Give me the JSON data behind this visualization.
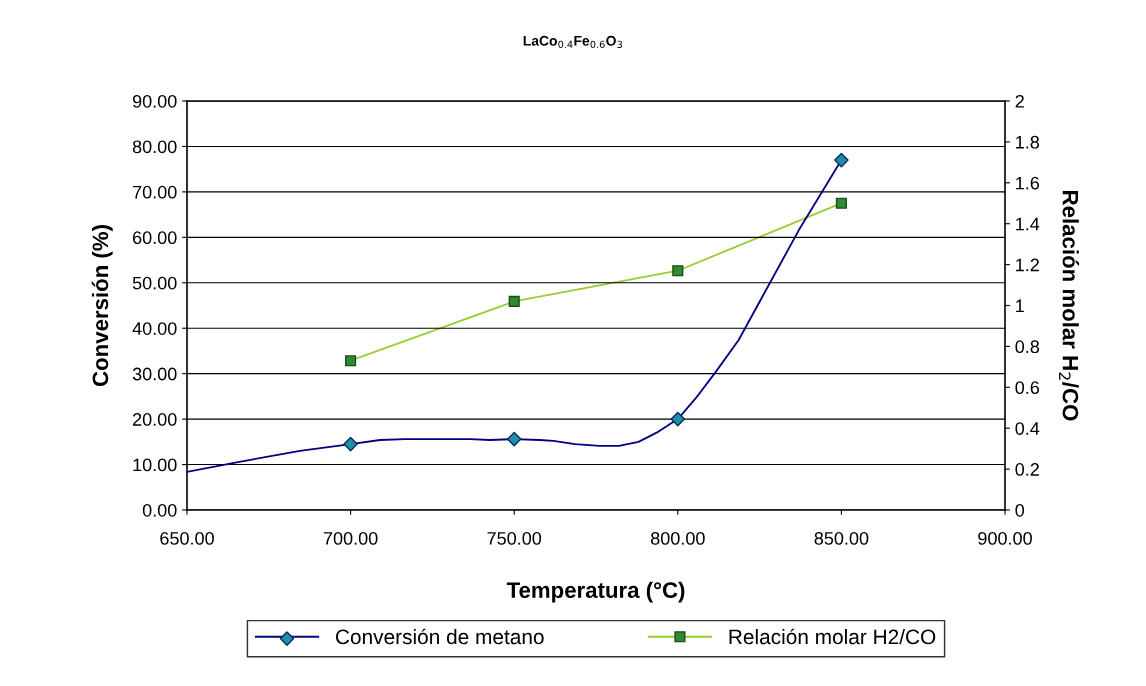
{
  "chart_data": {
    "type": "line",
    "title": "LaCo$_{0.4}$Fe$_{0.6}$O$_{3}$",
    "xlabel": "Temperatura (°C)",
    "ylabel": "Conversión (%)",
    "y2label": "Relación molar H$_{2}$/CO",
    "xlim": [
      650,
      900
    ],
    "xticks": [
      {
        "value": 650,
        "label": "650.00"
      },
      {
        "value": 700,
        "label": "700.00"
      },
      {
        "value": 750,
        "label": "750.00"
      },
      {
        "value": 800,
        "label": "800.00"
      },
      {
        "value": 850,
        "label": "850.00"
      },
      {
        "value": 900,
        "label": "900.00"
      }
    ],
    "ylim": [
      0,
      90
    ],
    "yticks": [
      {
        "value": 0,
        "label": "0.00"
      },
      {
        "value": 10,
        "label": "10.00"
      },
      {
        "value": 20,
        "label": "20.00"
      },
      {
        "value": 30,
        "label": "30.00"
      },
      {
        "value": 40,
        "label": "40.00"
      },
      {
        "value": 50,
        "label": "50.00"
      },
      {
        "value": 60,
        "label": "60.00"
      },
      {
        "value": 70,
        "label": "70.00"
      },
      {
        "value": 80,
        "label": "80.00"
      },
      {
        "value": 90,
        "label": "90.00"
      }
    ],
    "y2lim": [
      0,
      2
    ],
    "y2ticks": [
      0,
      0.2,
      0.4,
      0.6,
      0.8,
      1,
      1.2,
      1.4,
      1.6,
      1.8,
      2
    ],
    "grid": "y",
    "legend": "bottom",
    "series": [
      {
        "name": "Conversión de metano",
        "marker": "none",
        "color": "#000080",
        "x": [
          650,
          666,
          684.5,
          700,
          709,
          716.6,
          736.5,
          742.6,
          750,
          757.8,
          762,
          768.6,
          776,
          782,
          788,
          794,
          800,
          805.5,
          811.6,
          818.6,
          827.8,
          837,
          850
        ],
        "values": [
          8.4,
          10.6,
          13.0,
          14.5,
          15.4,
          15.6,
          15.6,
          15.4,
          15.6,
          15.4,
          15.2,
          14.5,
          14.1,
          14.1,
          15.0,
          17.2,
          20.0,
          24.6,
          30.4,
          37.4,
          49.5,
          61.6,
          77.0
        ]
      },
      {
        "type": "scatter",
        "marker": "diamond",
        "color": "#1f8fa6",
        "x": [
          700,
          750,
          800,
          850
        ],
        "values": [
          14.5,
          15.6,
          20.0,
          77.0
        ]
      },
      {
        "name": "Relación molar H2/CO",
        "type": "line",
        "marker": "square",
        "axis": "y2",
        "color": "#9acd32",
        "x": [
          700,
          750,
          800,
          850
        ],
        "values": [
          0.73,
          1.02,
          1.17,
          1.5
        ]
      }
    ]
  }
}
